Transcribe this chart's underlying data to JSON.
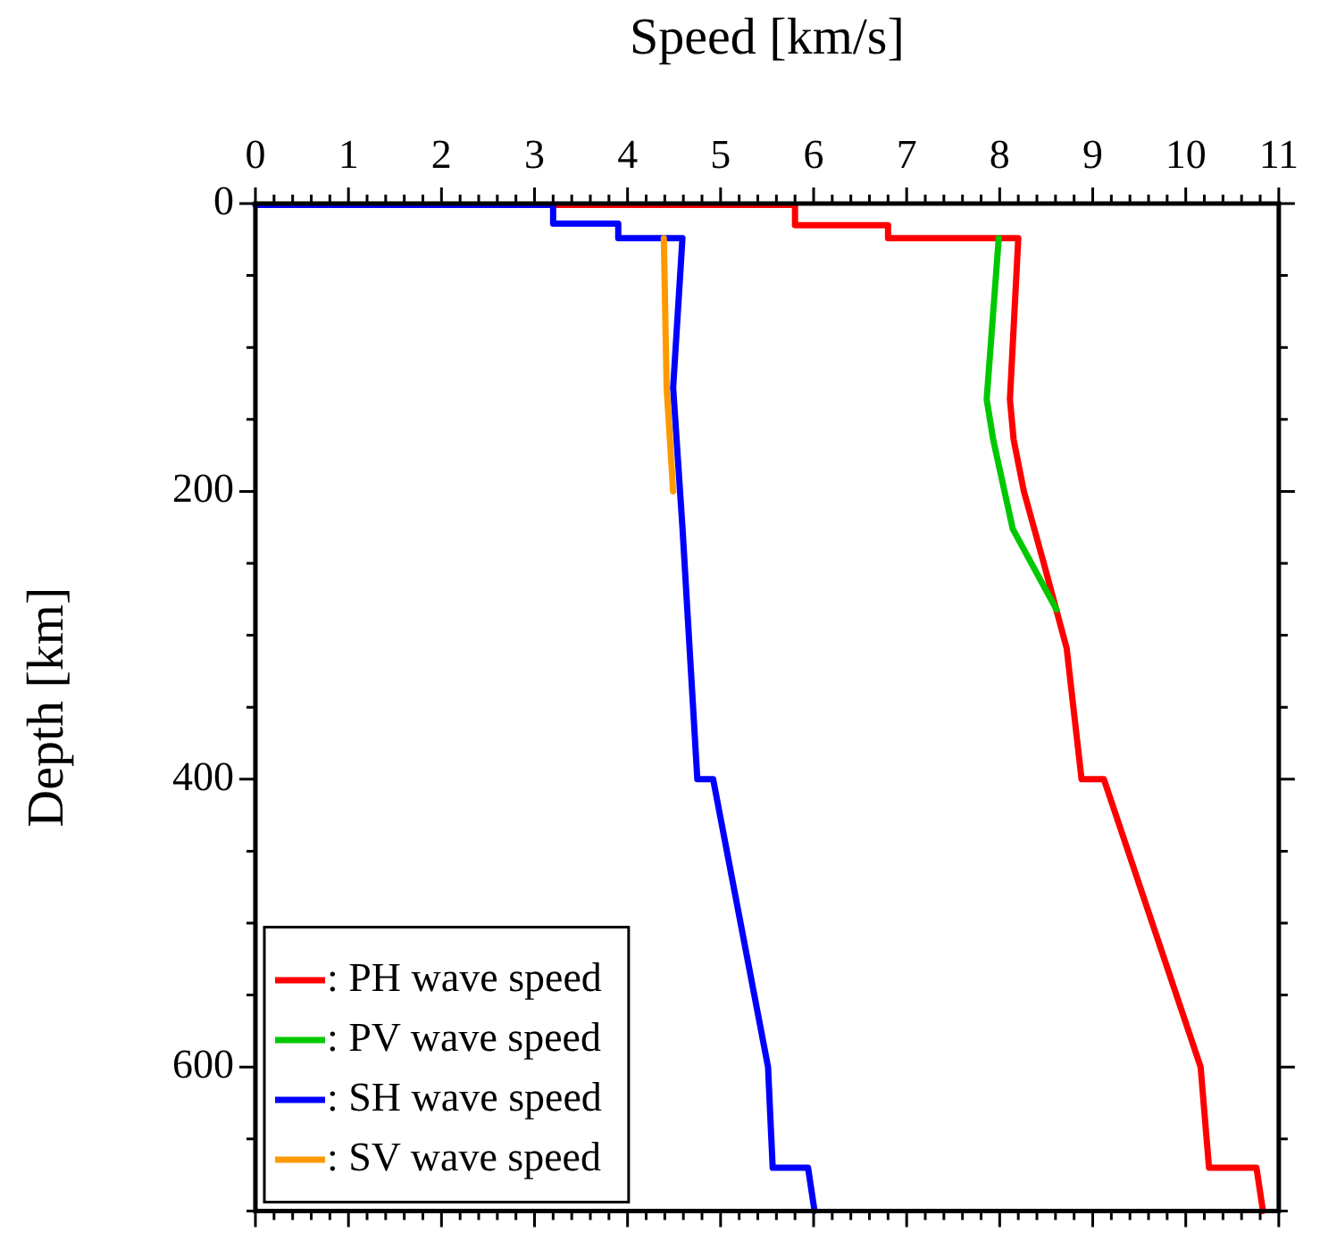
{
  "chart_data": {
    "type": "line",
    "xlabel": "Speed [km/s]",
    "ylabel": "Depth [km]",
    "xlim": [
      0,
      11
    ],
    "ylim": [
      700,
      0
    ],
    "xticks": [
      0,
      {
        "value": 0.2,
        "label": null
      },
      {
        "value": 0.4,
        "label": null
      },
      {
        "value": 0.6,
        "label": null
      },
      {
        "value": 0.8,
        "label": null
      },
      1,
      {
        "value": 1.2,
        "label": null
      },
      {
        "value": 1.4,
        "label": null
      },
      {
        "value": 1.6,
        "label": null
      },
      {
        "value": 1.8,
        "label": null
      },
      2,
      {
        "value": 2.2,
        "label": null
      },
      {
        "value": 2.4,
        "label": null
      },
      {
        "value": 2.6,
        "label": null
      },
      {
        "value": 2.8,
        "label": null
      },
      3,
      {
        "value": 3.2,
        "label": null
      },
      {
        "value": 3.4,
        "label": null
      },
      {
        "value": 3.6,
        "label": null
      },
      {
        "value": 3.8,
        "label": null
      },
      4,
      {
        "value": 4.2,
        "label": null
      },
      {
        "value": 4.4,
        "label": null
      },
      {
        "value": 4.6,
        "label": null
      },
      {
        "value": 4.8,
        "label": null
      },
      5,
      {
        "value": 5.2,
        "label": null
      },
      {
        "value": 5.4,
        "label": null
      },
      {
        "value": 5.6,
        "label": null
      },
      {
        "value": 5.8,
        "label": null
      },
      6,
      {
        "value": 6.2,
        "label": null
      },
      {
        "value": 6.4,
        "label": null
      },
      {
        "value": 6.6,
        "label": null
      },
      {
        "value": 6.8,
        "label": null
      },
      7,
      {
        "value": 7.2,
        "label": null
      },
      {
        "value": 7.4,
        "label": null
      },
      {
        "value": 7.6,
        "label": null
      },
      {
        "value": 7.8,
        "label": null
      },
      8,
      {
        "value": 8.2,
        "label": null
      },
      {
        "value": 8.4,
        "label": null
      },
      {
        "value": 8.6,
        "label": null
      },
      {
        "value": 8.8,
        "label": null
      },
      9,
      {
        "value": 9.2,
        "label": null
      },
      {
        "value": 9.4,
        "label": null
      },
      {
        "value": 9.6,
        "label": null
      },
      {
        "value": 9.8,
        "label": null
      },
      10,
      {
        "value": 10.2,
        "label": null
      },
      {
        "value": 10.4,
        "label": null
      },
      {
        "value": 10.6,
        "label": null
      },
      {
        "value": 10.8,
        "label": null
      },
      11
    ],
    "yticks": [
      0,
      {
        "value": 50,
        "label": null
      },
      {
        "value": 100,
        "label": null
      },
      {
        "value": 150,
        "label": null
      },
      200,
      {
        "value": 250,
        "label": null
      },
      {
        "value": 300,
        "label": null
      },
      {
        "value": 350,
        "label": null
      },
      400,
      {
        "value": 450,
        "label": null
      },
      {
        "value": 500,
        "label": null
      },
      {
        "value": 550,
        "label": null
      },
      600,
      {
        "value": 650,
        "label": null
      },
      {
        "value": 700,
        "label": null
      }
    ],
    "legend": "bottom left",
    "line_style": "solid",
    "series": [
      {
        "name": ": PH wave speed",
        "color": "#ff0000",
        "x": [
          3.2,
          5.8,
          5.8,
          6.8,
          6.8,
          8.2,
          8.11,
          8.15,
          8.26,
          8.47,
          8.72,
          8.88,
          9.12,
          10.16,
          10.25,
          10.76,
          10.83
        ],
        "values": [
          1,
          1,
          15,
          15,
          24,
          24,
          136,
          164,
          200,
          249,
          309,
          400,
          400,
          600,
          670,
          670,
          700
        ]
      },
      {
        "name": ": PV wave speed",
        "color": "#00c800",
        "x": [
          7.99,
          7.86,
          7.93,
          8.14,
          8.61
        ],
        "values": [
          24,
          136,
          164,
          226,
          282
        ]
      },
      {
        "name": ": SH wave speed",
        "color": "#0000ff",
        "x": [
          0,
          3.2,
          3.2,
          3.9,
          3.9,
          4.59,
          4.49,
          4.59,
          4.75,
          4.92,
          5.51,
          5.56,
          5.94,
          6.01
        ],
        "values": [
          1,
          1,
          14,
          14,
          24,
          24,
          128,
          225,
          400,
          400,
          600,
          670,
          670,
          700
        ]
      },
      {
        "name": ": SV wave speed",
        "color": "#ff9900",
        "x": [
          4.39,
          4.42,
          4.49
        ],
        "values": [
          24,
          128,
          200
        ]
      }
    ]
  }
}
